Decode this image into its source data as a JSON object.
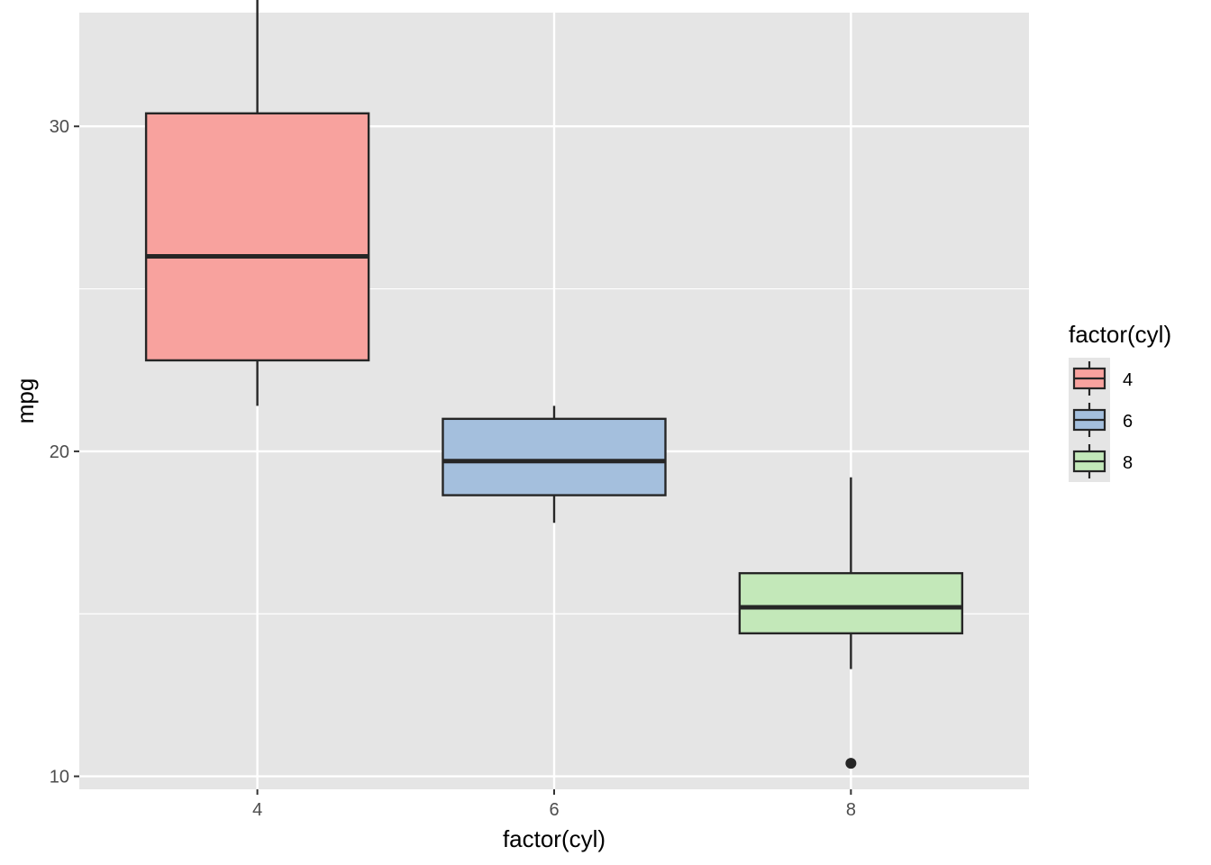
{
  "chart_data": {
    "type": "boxplot",
    "xlabel": "factor(cyl)",
    "ylabel": "mpg",
    "categories": [
      "4",
      "6",
      "8"
    ],
    "ylim": [
      9.6,
      33.5
    ],
    "yticks": [
      10,
      20,
      30
    ],
    "grid": true,
    "legend": {
      "title": "factor(cyl)",
      "position": "right",
      "entries": [
        "4",
        "6",
        "8"
      ]
    },
    "boxes": [
      {
        "category": "4",
        "lower_whisker": 21.4,
        "q1": 22.8,
        "median": 26.0,
        "q3": 30.4,
        "upper_whisker": 33.9,
        "outliers": [],
        "color": "#F8A29E"
      },
      {
        "category": "6",
        "lower_whisker": 17.8,
        "q1": 18.65,
        "median": 19.7,
        "q3": 21.0,
        "upper_whisker": 21.4,
        "outliers": [],
        "color": "#A4BFDD"
      },
      {
        "category": "8",
        "lower_whisker": 13.3,
        "q1": 14.4,
        "median": 15.2,
        "q3": 16.25,
        "upper_whisker": 19.2,
        "outliers": [
          10.4
        ],
        "color": "#C3E8B9"
      }
    ]
  },
  "colors": {
    "panel_background": "#E5E5E5",
    "grid_major": "#FFFFFF",
    "box_outline": "#262626"
  }
}
